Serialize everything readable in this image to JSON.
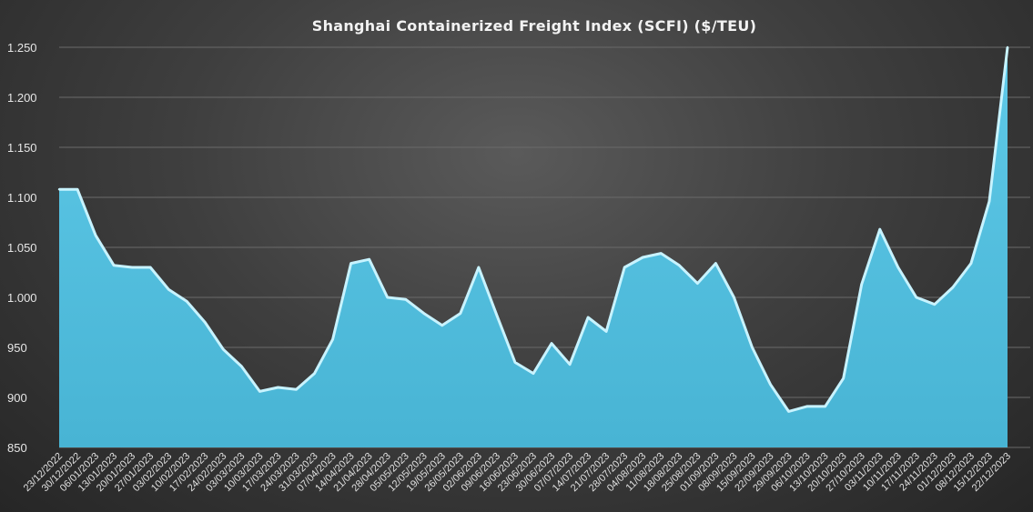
{
  "chart_data": {
    "type": "area",
    "title": "Shanghai  Containerized  Freight  Index  (SCFI) ($/TEU)",
    "xlabel": "",
    "ylabel": "",
    "ylim": [
      850,
      1250
    ],
    "yticks": [
      850,
      900,
      950,
      1000,
      1050,
      1100,
      1150,
      1200,
      1250
    ],
    "ytick_labels": [
      "850",
      "900",
      "950",
      "1.000",
      "1.050",
      "1.100",
      "1.150",
      "1.200",
      "1.250"
    ],
    "grid": true,
    "legend": "none",
    "fill_color": "#5bc8e6",
    "edge_color": "#c8f3ff",
    "categories": [
      "23/12/2022",
      "30/12/2022",
      "06/01/2023",
      "13/01/2023",
      "20/01/2023",
      "27/01/2023",
      "03/02/2023",
      "10/02/2023",
      "17/02/2023",
      "24/02/2023",
      "03/03/2023",
      "10/03/2023",
      "17/03/2023",
      "24/03/2023",
      "31/03/2023",
      "07/04/2023",
      "14/04/2023",
      "21/04/2023",
      "28/04/2023",
      "05/05/2023",
      "12/05/2023",
      "19/05/2023",
      "26/05/2023",
      "02/06/2023",
      "09/06/2023",
      "16/06/2023",
      "23/06/2023",
      "30/06/2023",
      "07/07/2023",
      "14/07/2023",
      "21/07/2023",
      "28/07/2023",
      "04/08/2023",
      "11/08/2023",
      "18/08/2023",
      "25/08/2023",
      "01/09/2023",
      "08/09/2023",
      "15/09/2023",
      "22/09/2023",
      "29/09/2023",
      "06/10/2023",
      "13/10/2023",
      "20/10/2023",
      "27/10/2023",
      "03/11/2023",
      "10/11/2023",
      "17/11/2023",
      "24/11/2023",
      "01/12/2023",
      "08/12/2023",
      "15/12/2023",
      "22/12/2023"
    ],
    "values": [
      1108,
      1108,
      1062,
      1032,
      1030,
      1030,
      1008,
      996,
      975,
      948,
      931,
      906,
      910,
      908,
      924,
      958,
      1034,
      1038,
      1000,
      998,
      984,
      972,
      984,
      1030,
      982,
      935,
      924,
      954,
      933,
      980,
      966,
      1030,
      1040,
      1044,
      1032,
      1014,
      1034,
      1000,
      950,
      913,
      886,
      891,
      891,
      919,
      1013,
      1068,
      1030,
      1000,
      993,
      1010,
      1034,
      1096,
      1250
    ]
  }
}
